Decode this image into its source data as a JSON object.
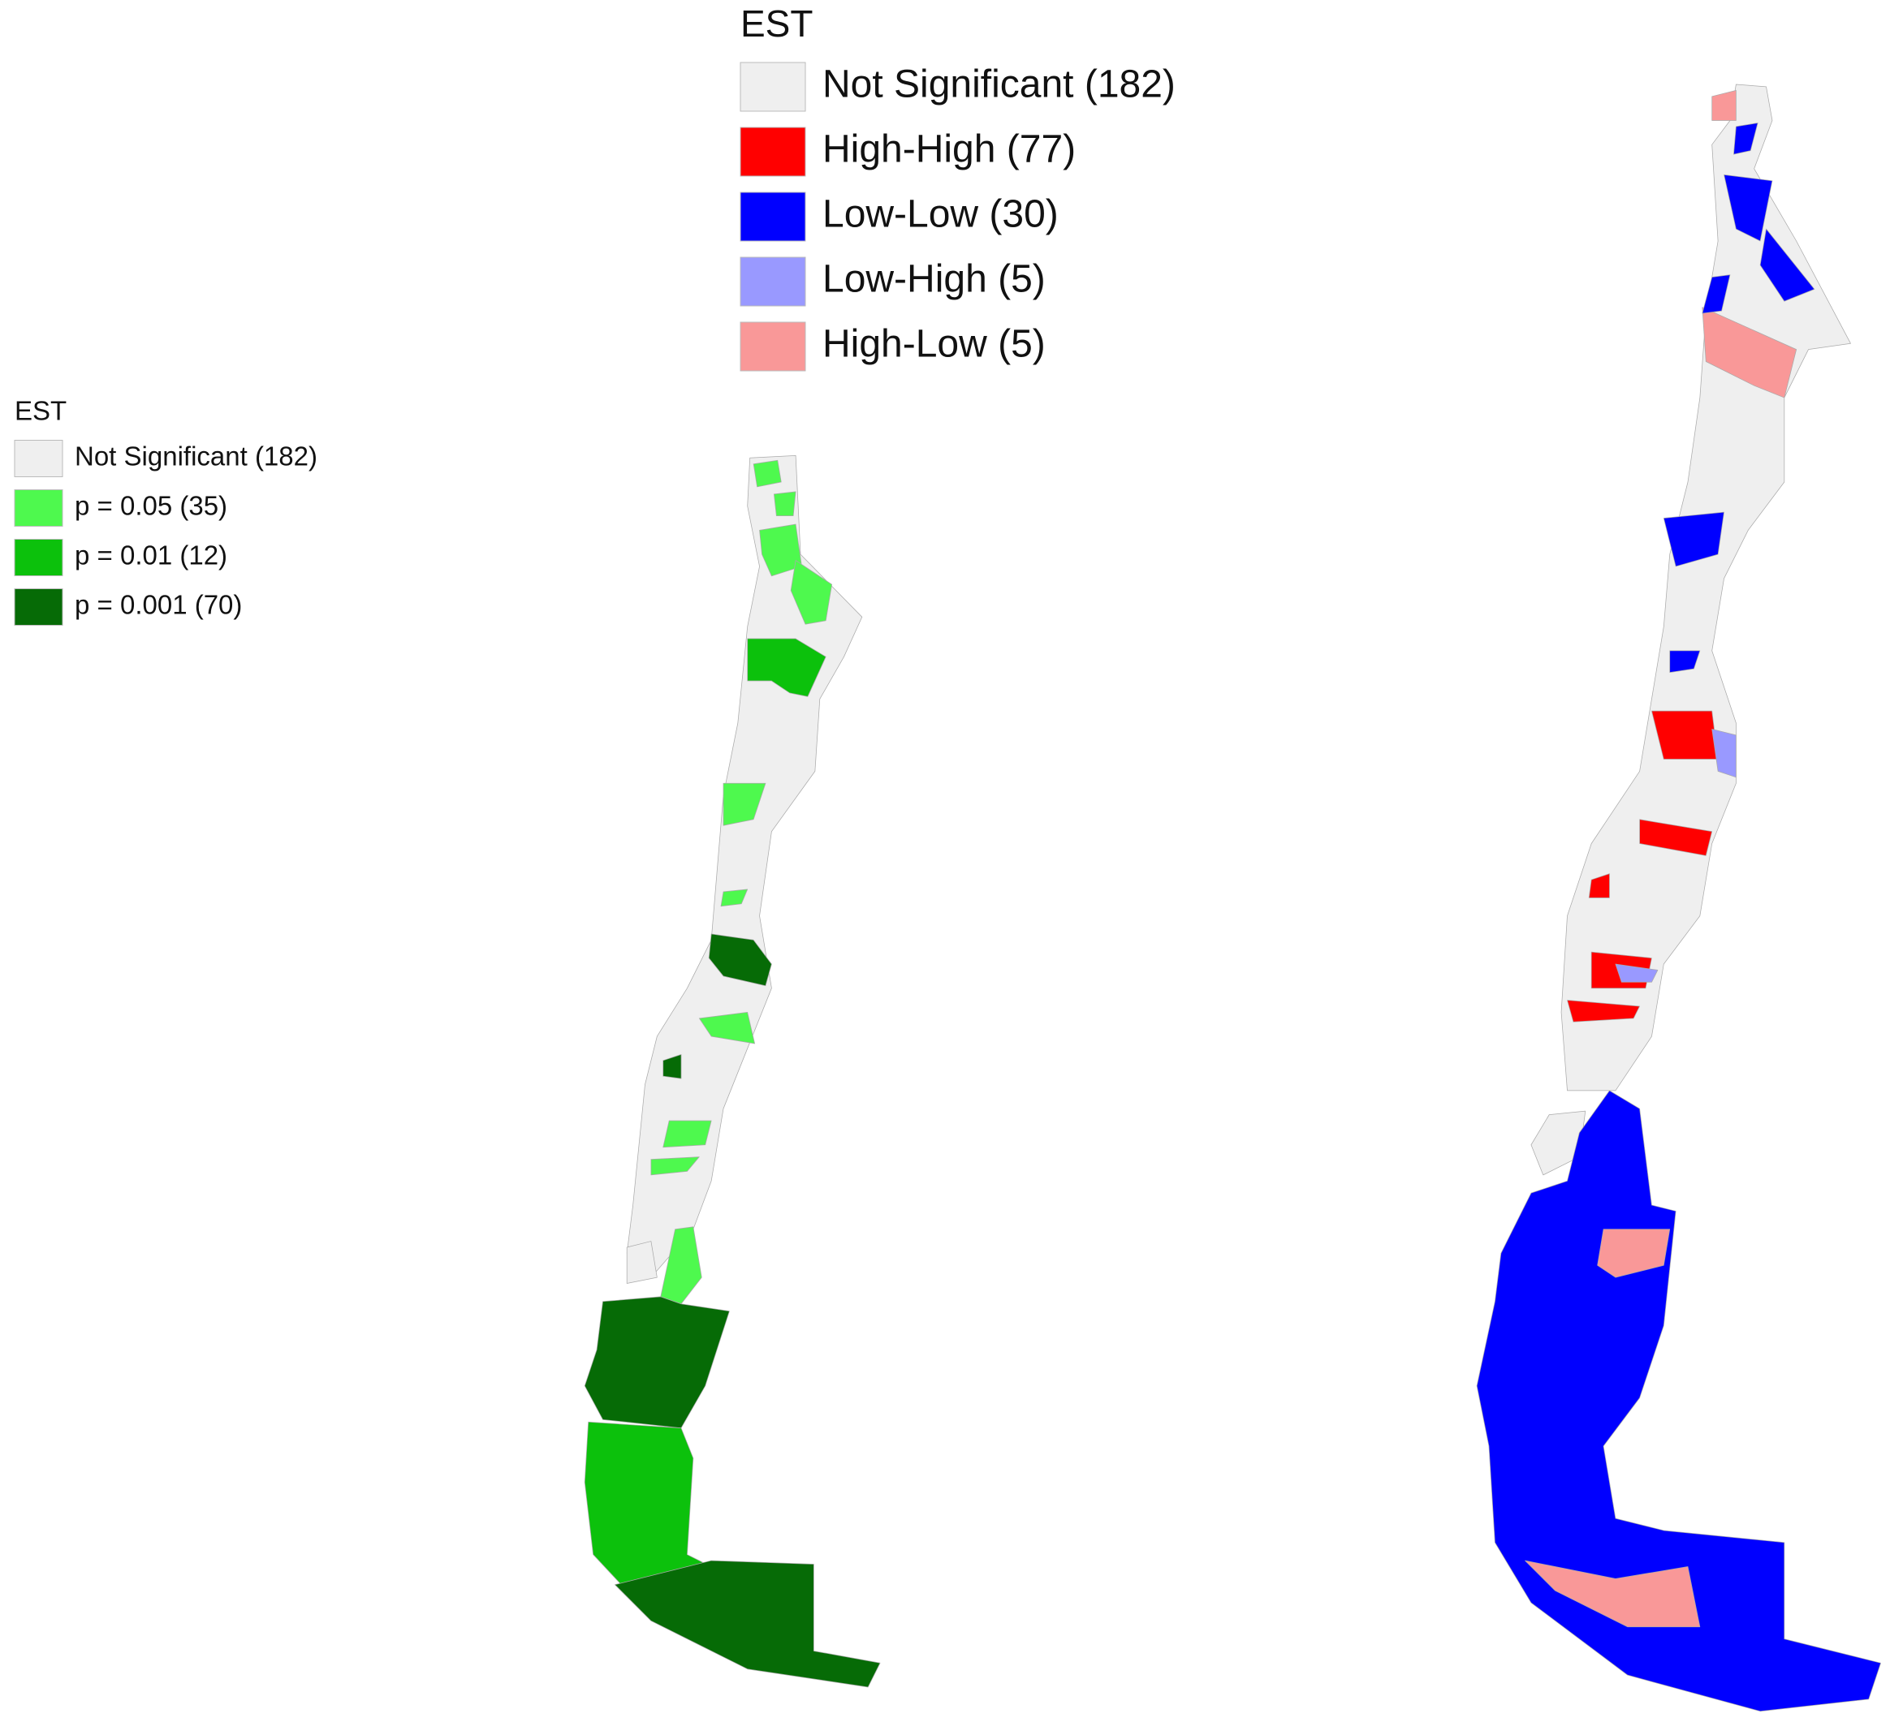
{
  "significance_legend": {
    "title": "EST",
    "items": [
      {
        "label": "Not Significant (182)",
        "color": "#efefef"
      },
      {
        "label": "p = 0.05 (35)",
        "color": "#4ef94e"
      },
      {
        "label": "p = 0.01 (12)",
        "color": "#0cc10c"
      },
      {
        "label": "p = 0.001 (70)",
        "color": "#066b06"
      }
    ]
  },
  "cluster_legend": {
    "title": "EST",
    "items": [
      {
        "label": "Not Significant (182)",
        "color": "#efefef"
      },
      {
        "label": "High-High (77)",
        "color": "#ff0000"
      },
      {
        "label": "Low-Low (30)",
        "color": "#0000ff"
      },
      {
        "label": "Low-High (5)",
        "color": "#9999ff"
      },
      {
        "label": "High-Low (5)",
        "color": "#f99898"
      }
    ]
  }
}
